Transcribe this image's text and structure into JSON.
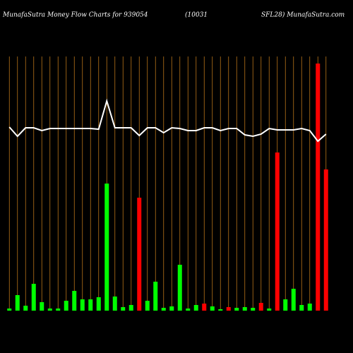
{
  "chart_data": {
    "type": "bar",
    "title_parts": [
      "MunafaSutra  Money Flow  Charts for 939054",
      "(10031",
      "SFL28) MunafaSutra.com"
    ],
    "categories": [
      null,
      null,
      null,
      null,
      null,
      null,
      null,
      null,
      null,
      null,
      null,
      null,
      null,
      null,
      null,
      null,
      null,
      null,
      null,
      null,
      null,
      null,
      null,
      null,
      null,
      null,
      null,
      null,
      null,
      null,
      null,
      null,
      null,
      null,
      null,
      null,
      null,
      null,
      null,
      null
    ],
    "values": [
      3,
      22,
      7,
      38,
      12,
      3,
      3,
      14,
      28,
      16,
      16,
      19,
      180,
      20,
      5,
      8,
      160,
      14,
      41,
      4,
      6,
      65,
      3,
      8,
      10,
      6,
      2,
      5,
      4,
      5,
      4,
      11,
      3,
      224,
      16,
      31,
      8,
      10,
      350,
      200
    ],
    "colors": [
      "#00ff00",
      "#00ff00",
      "#00ff00",
      "#00ff00",
      "#00ff00",
      "#00ff00",
      "#00ff00",
      "#00ff00",
      "#00ff00",
      "#00ff00",
      "#00ff00",
      "#00ff00",
      "#00ff00",
      "#00ff00",
      "#00ff00",
      "#00ff00",
      "#ff0000",
      "#00ff00",
      "#00ff00",
      "#00ff00",
      "#00ff00",
      "#00ff00",
      "#00ff00",
      "#00ff00",
      "#ff0000",
      "#00ff00",
      "#00ff00",
      "#ff0000",
      "#00ff00",
      "#00ff00",
      "#00ff00",
      "#ff0000",
      "#00ff00",
      "#ff0000",
      "#00ff00",
      "#00ff00",
      "#00ff00",
      "#00ff00",
      "#ff0000",
      "#ff0000"
    ],
    "line": {
      "color": "#ffffff",
      "values": [
        260,
        247,
        259,
        259,
        255,
        258,
        258,
        258,
        258,
        258,
        258,
        257,
        297,
        259,
        259,
        259,
        248,
        259,
        259,
        252,
        259,
        258,
        255,
        255,
        259,
        259,
        255,
        258,
        258,
        249,
        247,
        250,
        258,
        256,
        256,
        256,
        258,
        255,
        240,
        250
      ]
    },
    "grid_color": "#b8741a",
    "ylim": [
      0,
      360
    ]
  }
}
